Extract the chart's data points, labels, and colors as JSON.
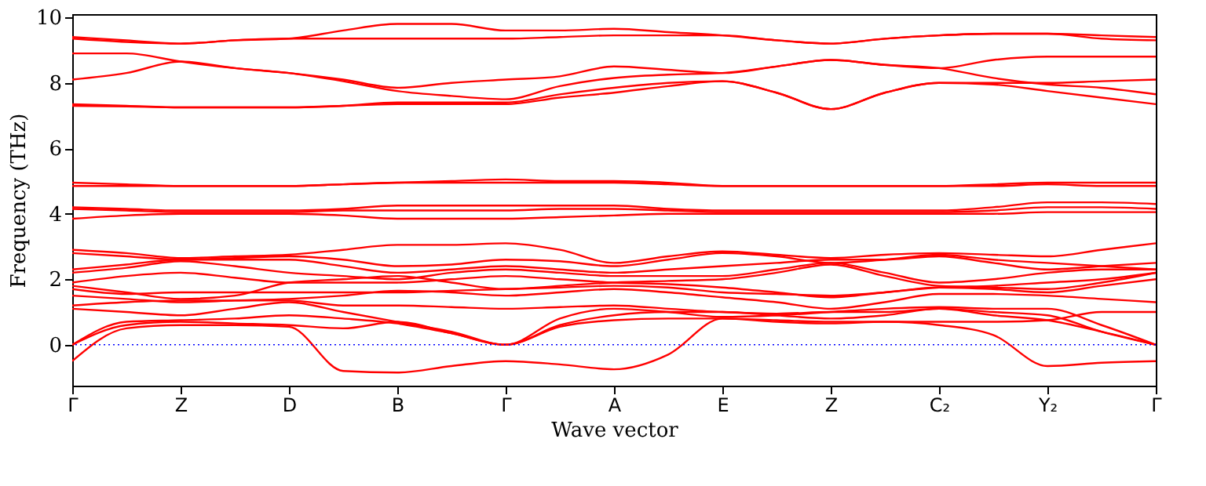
{
  "chart_data": {
    "type": "line",
    "xlabel": "Wave vector",
    "ylabel": "Frequency (THz)",
    "categories": [
      "Γ",
      null,
      "Z",
      null,
      "D",
      null,
      "B",
      null,
      "Γ",
      null,
      "A",
      null,
      "E",
      null,
      "Z",
      null,
      "C₂",
      null,
      "Y₂",
      null,
      "Γ"
    ],
    "ylim": [
      -1.25,
      10.1
    ],
    "yticks": [
      0,
      2,
      4,
      6,
      8,
      10
    ],
    "ref_lines": [
      {
        "axis": "y",
        "value": 0,
        "color": "#0000ff",
        "line_style": "dotted"
      }
    ],
    "series": [
      {
        "color": "#ff0000",
        "values": [
          9.4,
          9.3,
          9.2,
          9.3,
          9.35,
          9.6,
          9.8,
          9.8,
          9.6,
          9.6,
          9.65,
          9.55,
          9.45,
          9.3,
          9.2,
          9.35,
          9.45,
          9.5,
          9.5,
          9.45,
          9.4
        ]
      },
      {
        "color": "#ff0000",
        "values": [
          9.35,
          9.25,
          9.2,
          9.3,
          9.35,
          9.35,
          9.35,
          9.35,
          9.35,
          9.4,
          9.45,
          9.45,
          9.45,
          9.3,
          9.2,
          9.35,
          9.45,
          9.5,
          9.5,
          9.35,
          9.3
        ]
      },
      {
        "color": "#ff0000",
        "values": [
          8.9,
          8.9,
          8.65,
          8.45,
          8.3,
          8.1,
          7.85,
          8.0,
          8.1,
          8.2,
          8.5,
          8.4,
          8.3,
          8.5,
          8.7,
          8.55,
          8.45,
          8.7,
          8.8,
          8.8,
          8.8
        ]
      },
      {
        "color": "#ff0000",
        "values": [
          8.1,
          8.3,
          8.65,
          8.45,
          8.3,
          8.05,
          7.75,
          7.6,
          7.5,
          7.9,
          8.15,
          8.25,
          8.3,
          8.5,
          8.7,
          8.55,
          8.45,
          8.15,
          7.95,
          7.85,
          7.65
        ]
      },
      {
        "color": "#ff0000",
        "values": [
          7.35,
          7.3,
          7.25,
          7.25,
          7.25,
          7.3,
          7.4,
          7.4,
          7.4,
          7.65,
          7.85,
          8.0,
          8.05,
          7.7,
          7.2,
          7.7,
          8.0,
          8.0,
          8.0,
          8.05,
          8.1
        ]
      },
      {
        "color": "#ff0000",
        "values": [
          7.3,
          7.28,
          7.25,
          7.25,
          7.25,
          7.3,
          7.35,
          7.35,
          7.35,
          7.55,
          7.7,
          7.9,
          8.05,
          7.7,
          7.2,
          7.7,
          8.0,
          7.95,
          7.75,
          7.55,
          7.35
        ]
      },
      {
        "color": "#ff0000",
        "values": [
          4.95,
          4.9,
          4.85,
          4.85,
          4.85,
          4.9,
          4.95,
          5.0,
          5.05,
          5.0,
          5.0,
          4.95,
          4.85,
          4.85,
          4.85,
          4.85,
          4.85,
          4.9,
          4.95,
          4.95,
          4.95
        ]
      },
      {
        "color": "#ff0000",
        "values": [
          4.85,
          4.85,
          4.85,
          4.85,
          4.85,
          4.9,
          4.95,
          4.95,
          4.95,
          4.95,
          4.95,
          4.9,
          4.85,
          4.85,
          4.85,
          4.85,
          4.85,
          4.85,
          4.9,
          4.85,
          4.85
        ]
      },
      {
        "color": "#ff0000",
        "values": [
          4.2,
          4.15,
          4.1,
          4.1,
          4.1,
          4.15,
          4.25,
          4.25,
          4.25,
          4.25,
          4.25,
          4.15,
          4.1,
          4.1,
          4.1,
          4.1,
          4.1,
          4.2,
          4.35,
          4.35,
          4.3
        ]
      },
      {
        "color": "#ff0000",
        "values": [
          4.15,
          4.1,
          4.05,
          4.05,
          4.05,
          4.1,
          4.1,
          4.1,
          4.1,
          4.15,
          4.15,
          4.1,
          4.05,
          4.05,
          4.05,
          4.05,
          4.05,
          4.1,
          4.2,
          4.2,
          4.15
        ]
      },
      {
        "color": "#ff0000",
        "values": [
          3.85,
          3.95,
          4.0,
          4.0,
          4.0,
          3.95,
          3.85,
          3.85,
          3.85,
          3.9,
          3.95,
          4.0,
          4.0,
          4.0,
          4.0,
          4.0,
          4.0,
          4.0,
          4.05,
          4.05,
          4.05
        ]
      },
      {
        "color": "#ff0000",
        "values": [
          2.9,
          2.8,
          2.65,
          2.7,
          2.75,
          2.9,
          3.05,
          3.05,
          3.1,
          2.9,
          2.5,
          2.7,
          2.85,
          2.75,
          2.65,
          2.75,
          2.8,
          2.75,
          2.7,
          2.9,
          3.1
        ]
      },
      {
        "color": "#ff0000",
        "values": [
          2.8,
          2.7,
          2.6,
          2.65,
          2.7,
          2.6,
          2.4,
          2.45,
          2.6,
          2.55,
          2.4,
          2.6,
          2.8,
          2.7,
          2.5,
          2.6,
          2.75,
          2.6,
          2.5,
          2.4,
          2.3
        ]
      },
      {
        "color": "#ff0000",
        "values": [
          2.3,
          2.45,
          2.6,
          2.6,
          2.6,
          2.4,
          2.2,
          2.3,
          2.4,
          2.3,
          2.2,
          2.3,
          2.4,
          2.5,
          2.6,
          2.6,
          2.7,
          2.5,
          2.3,
          2.4,
          2.5
        ]
      },
      {
        "color": "#ff0000",
        "values": [
          2.2,
          2.35,
          2.55,
          2.4,
          2.2,
          2.1,
          2.0,
          2.2,
          2.3,
          2.2,
          2.1,
          2.1,
          2.1,
          2.3,
          2.5,
          2.2,
          1.9,
          2.0,
          2.2,
          2.3,
          2.3
        ]
      },
      {
        "color": "#ff0000",
        "values": [
          1.9,
          2.1,
          2.2,
          2.05,
          1.9,
          1.9,
          1.9,
          2.0,
          2.1,
          2.0,
          1.9,
          1.85,
          1.75,
          1.6,
          1.45,
          1.6,
          1.75,
          1.8,
          1.9,
          2.0,
          2.2
        ]
      },
      {
        "color": "#ff0000",
        "values": [
          1.8,
          1.6,
          1.4,
          1.5,
          1.9,
          2.0,
          2.1,
          1.9,
          1.7,
          1.8,
          1.9,
          1.95,
          2.0,
          2.2,
          2.45,
          2.1,
          1.8,
          1.75,
          1.7,
          1.9,
          2.2
        ]
      },
      {
        "color": "#ff0000",
        "values": [
          1.7,
          1.55,
          1.6,
          1.6,
          1.6,
          1.6,
          1.6,
          1.65,
          1.7,
          1.75,
          1.8,
          1.75,
          1.6,
          1.55,
          1.5,
          1.6,
          1.75,
          1.7,
          1.6,
          1.8,
          2.0
        ]
      },
      {
        "color": "#ff0000",
        "values": [
          1.5,
          1.4,
          1.3,
          1.35,
          1.4,
          1.5,
          1.65,
          1.6,
          1.5,
          1.6,
          1.7,
          1.6,
          1.45,
          1.3,
          1.1,
          1.3,
          1.55,
          1.55,
          1.5,
          1.4,
          1.3
        ]
      },
      {
        "color": "#ff0000",
        "values": [
          1.2,
          1.3,
          1.35,
          1.35,
          1.35,
          1.2,
          1.2,
          1.15,
          1.1,
          1.15,
          1.2,
          1.1,
          1.0,
          0.95,
          1.0,
          1.0,
          1.1,
          1.0,
          0.9,
          0.4,
          0.0
        ]
      },
      {
        "color": "#ff0000",
        "values": [
          1.1,
          1.0,
          0.9,
          1.1,
          1.3,
          1.0,
          0.7,
          0.4,
          0.0,
          0.8,
          1.1,
          1.0,
          0.85,
          0.9,
          1.0,
          1.1,
          1.15,
          1.1,
          1.1,
          0.6,
          0.0
        ]
      },
      {
        "color": "#ff0000",
        "values": [
          0.0,
          0.7,
          0.75,
          0.8,
          0.9,
          0.8,
          0.65,
          0.35,
          0.0,
          0.6,
          0.9,
          1.0,
          1.0,
          0.9,
          0.8,
          0.9,
          1.1,
          0.9,
          0.75,
          0.4,
          0.0
        ]
      },
      {
        "color": "#ff0000",
        "values": [
          0.0,
          0.6,
          0.7,
          0.65,
          0.6,
          0.5,
          0.7,
          0.35,
          0.0,
          0.55,
          0.75,
          0.8,
          0.8,
          0.75,
          0.7,
          0.7,
          0.7,
          0.7,
          0.75,
          1.0,
          1.0
        ]
      },
      {
        "color": "#ff0000",
        "values": [
          -0.5,
          0.5,
          0.6,
          0.6,
          0.55,
          -0.8,
          -0.85,
          -0.65,
          -0.5,
          -0.6,
          -0.75,
          -0.3,
          0.8,
          0.7,
          0.65,
          0.7,
          0.6,
          0.3,
          -0.65,
          -0.55,
          -0.5
        ]
      }
    ]
  }
}
